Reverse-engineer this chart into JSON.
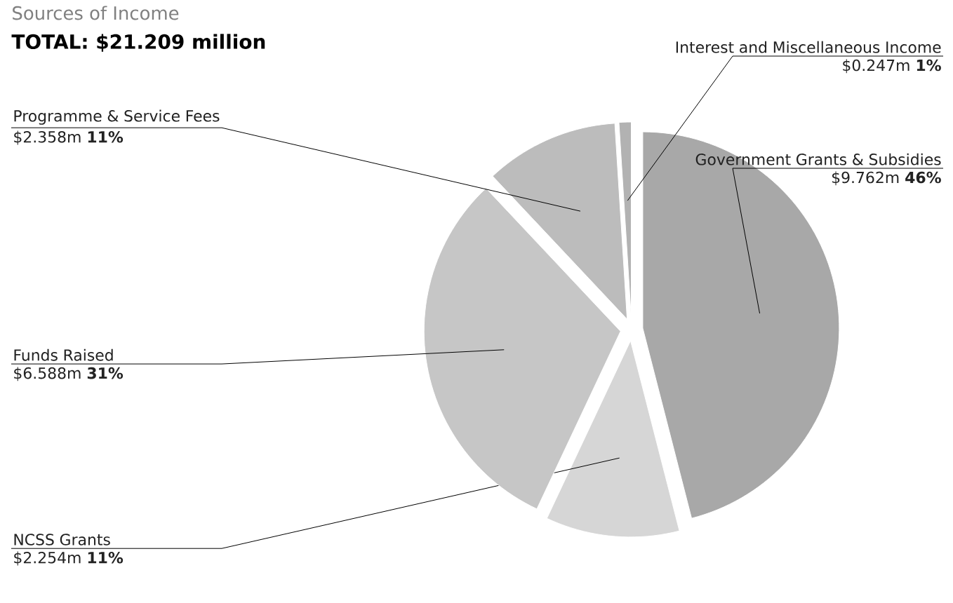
{
  "chart_data": {
    "type": "pie",
    "title": "Sources of Income",
    "subtitle": "TOTAL: $21.209 million",
    "categories": [
      "Government Grants & Subsidies",
      "NCSS Grants",
      "Funds Raised",
      "Programme & Service Fees",
      "Interest and Miscellaneous Income"
    ],
    "values": [
      46,
      11,
      31,
      11,
      1
    ],
    "value_labels": [
      "$9.762m **46%**",
      "$2.254m **11%**",
      "$6.588m **31%**",
      "$2.358m **11%**",
      "$0.247m **1%**"
    ],
    "colors": [
      "#a8a8a8",
      "#d6d6d6",
      "#c6c6c6",
      "#bcbcbc",
      "#b2b2b2"
    ]
  }
}
